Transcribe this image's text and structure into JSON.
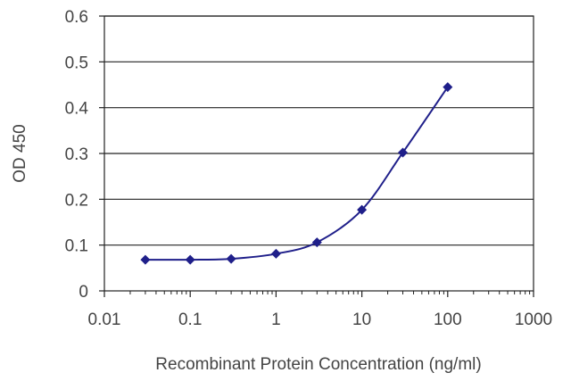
{
  "chart_data": {
    "type": "line",
    "title": "",
    "xlabel": "Recombinant Protein Concentration (ng/ml)",
    "ylabel": "OD 450",
    "x_scale": "log",
    "xlim": [
      0.01,
      1000
    ],
    "ylim": [
      0,
      0.6
    ],
    "x_ticks": [
      "0.01",
      "0.1",
      "1",
      "10",
      "100",
      "1000"
    ],
    "y_ticks": [
      "0",
      "0.1",
      "0.2",
      "0.3",
      "0.4",
      "0.5",
      "0.6"
    ],
    "grid": "horizontal",
    "legend": "none",
    "series": [
      {
        "color": "#1f1f8a",
        "points": [
          {
            "x": 0.03,
            "y": 0.068
          },
          {
            "x": 0.1,
            "y": 0.068
          },
          {
            "x": 0.3,
            "y": 0.07
          },
          {
            "x": 1,
            "y": 0.081
          },
          {
            "x": 3,
            "y": 0.106
          },
          {
            "x": 10,
            "y": 0.177
          },
          {
            "x": 30,
            "y": 0.302
          },
          {
            "x": 100,
            "y": 0.445
          }
        ]
      }
    ]
  }
}
